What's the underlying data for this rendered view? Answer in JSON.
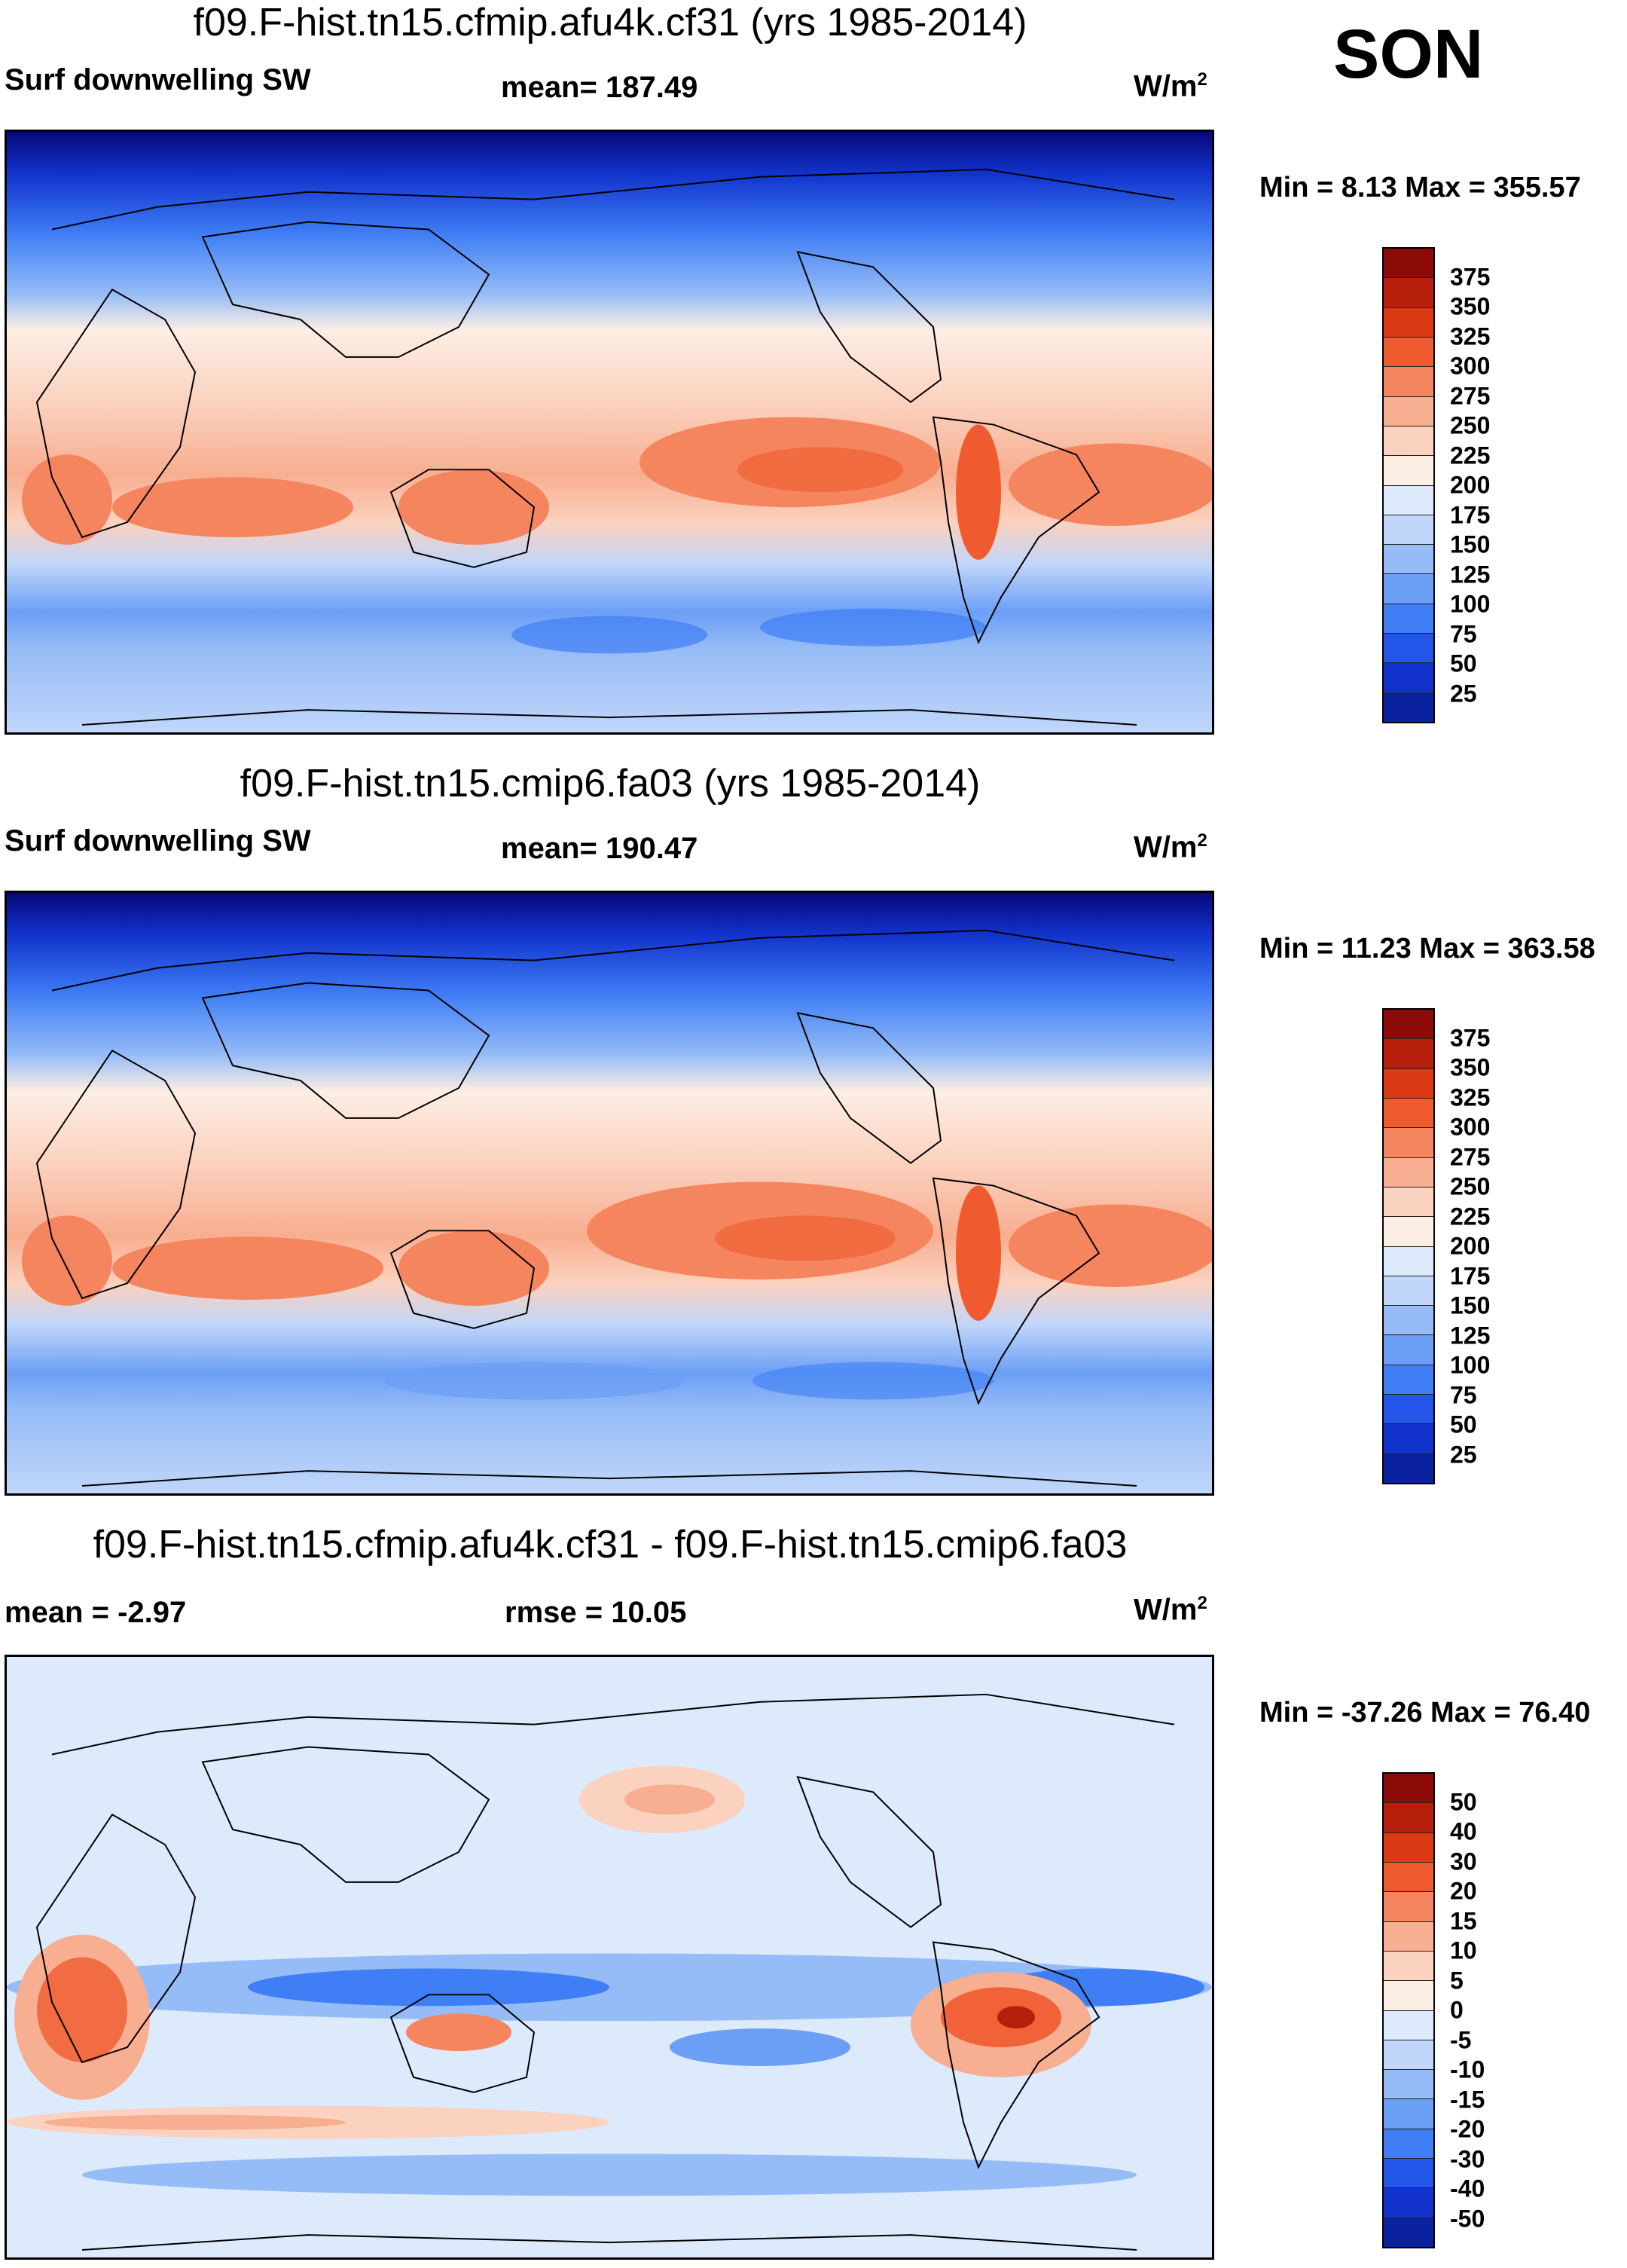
{
  "season": "SON",
  "units_prefix": "W/m",
  "units_sup": "2",
  "colors": {
    "abs_scale": [
      "#08087a",
      "#0a229e",
      "#1133cc",
      "#2255e8",
      "#3f7ef5",
      "#6b9ef5",
      "#96bcf7",
      "#c0d6fa",
      "#dceafb",
      "#fdeee4",
      "#fbd2bf",
      "#f8ae90",
      "#f4855e",
      "#ef5a2f",
      "#dc3a14",
      "#b51f0c",
      "#8c0a08"
    ],
    "diff_scale": [
      "#08087a",
      "#0a229e",
      "#1133cc",
      "#2255e8",
      "#3f7ef5",
      "#6b9ef5",
      "#96bcf7",
      "#c0d6fa",
      "#dceafb",
      "#fdeee4",
      "#fbd2bf",
      "#f8ae90",
      "#f4855e",
      "#ef5a2f",
      "#dc3a14",
      "#b51f0c",
      "#8c0a08"
    ]
  },
  "panels": [
    {
      "title": "f09.F-hist.tn15.cfmip.afu4k.cf31 (yrs 1985-2014)",
      "left_label": "Surf downwelling SW",
      "center_label": "mean= 187.49",
      "minmax": "Min =   8.13 Max = 355.57",
      "ticks": [
        "375",
        "350",
        "325",
        "300",
        "275",
        "250",
        "225",
        "200",
        "175",
        "150",
        "125",
        "100",
        "75",
        "50",
        "25"
      ],
      "kind": "abs"
    },
    {
      "title": "f09.F-hist.tn15.cmip6.fa03 (yrs 1985-2014)",
      "left_label": "Surf downwelling SW",
      "center_label": "mean= 190.47",
      "minmax": "Min =  11.23 Max = 363.58",
      "ticks": [
        "375",
        "350",
        "325",
        "300",
        "275",
        "250",
        "225",
        "200",
        "175",
        "150",
        "125",
        "100",
        "75",
        "50",
        "25"
      ],
      "kind": "abs"
    },
    {
      "title": "f09.F-hist.tn15.cfmip.afu4k.cf31 - f09.F-hist.tn15.cmip6.fa03",
      "left_label": "mean =  -2.97",
      "center_label": "rmse =  10.05",
      "minmax": "Min = -37.26 Max =  76.40",
      "ticks": [
        "50",
        "40",
        "30",
        "20",
        "15",
        "10",
        "5",
        "0",
        "-5",
        "-10",
        "-15",
        "-20",
        "-30",
        "-40",
        "-50"
      ],
      "kind": "diff"
    }
  ]
}
